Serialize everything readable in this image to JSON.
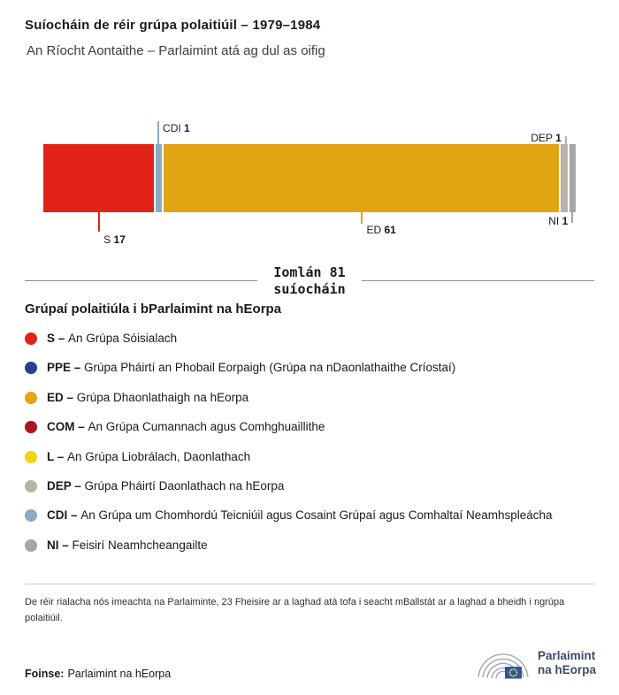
{
  "header": {
    "title": "Suíocháin de réir grúpa polaitiúil – 1979–1984",
    "subtitle": "An Ríocht Aontaithe – Parlaimint atá ag dul as oifig"
  },
  "chart_data": {
    "type": "bar",
    "orientation": "horizontal-stacked",
    "title": "Suíocháin de réir grúpa polaitiúil – 1979–1984",
    "subtitle": "An Ríocht Aontaithe – Parlaimint atá ag dul as oifig",
    "total_seats": 81,
    "segments": [
      {
        "code": "S",
        "seats": 17,
        "color": "#e2231a"
      },
      {
        "code": "CDI",
        "seats": 1,
        "color": "#8aabc2"
      },
      {
        "code": "ED",
        "seats": 61,
        "color": "#e2a413"
      },
      {
        "code": "DEP",
        "seats": 1,
        "color": "#b7b3a5"
      },
      {
        "code": "NI",
        "seats": 1,
        "color": "#a6a6a6"
      }
    ],
    "total_label": {
      "line1": "Iomlán 81",
      "line2": "suíocháin"
    }
  },
  "legend": {
    "title": "Grúpaí polaitiúla i bParlaimint na hEorpa",
    "items": [
      {
        "code": "S",
        "code_label": "S –",
        "label": "An Grúpa Sóisialach",
        "color": "#e2231a"
      },
      {
        "code": "PPE",
        "code_label": "PPE –",
        "label": "Grúpa Pháirtí an Phobail Eorpaigh (Grúpa na nDaonlathaithe Críostaí)",
        "color": "#26418f"
      },
      {
        "code": "ED",
        "code_label": "ED –",
        "label": "Grúpa Dhaonlathaigh na hEorpa",
        "color": "#e2a413"
      },
      {
        "code": "COM",
        "code_label": "COM –",
        "label": "An Grúpa Cumannach agus Comhghuaillithe",
        "color": "#b01324"
      },
      {
        "code": "L",
        "code_label": "L –",
        "label": "An Grúpa Liobrálach, Daonlathach",
        "color": "#f2d50f"
      },
      {
        "code": "DEP",
        "code_label": "DEP –",
        "label": "Grúpa Pháirtí Daonlathach na hEorpa",
        "color": "#b7b3a5"
      },
      {
        "code": "CDI",
        "code_label": "CDI –",
        "label": "An Grúpa um Chomhordú Teicniúil agus Cosaint Grúpaí agus Comhaltaí Neamhspleácha",
        "color": "#8aabc2"
      },
      {
        "code": "NI",
        "code_label": "NI –",
        "label": "Feisirí Neamhcheangailte",
        "color": "#a6a6a6"
      }
    ]
  },
  "footer": {
    "note": "De réir rialacha nós imeachta na Parlaiminte, 23 Fheisire ar a laghad atá tofa i seacht mBallstát ar a laghad a bheidh i ngrúpa polaitiúil.",
    "source_label": "Foinse:",
    "source_value": "Parlaimint na hEorpa",
    "logo_line1": "Parlaimint",
    "logo_line2": "na hEorpa"
  }
}
